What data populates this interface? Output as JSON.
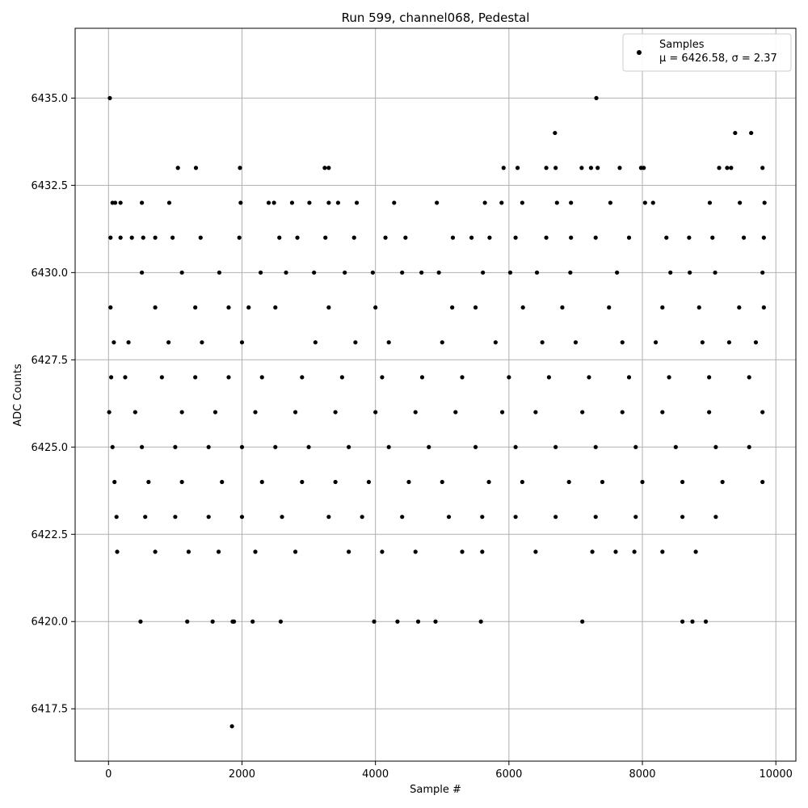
{
  "chart_data": {
    "type": "scatter",
    "title": "Run 599, channel068, Pedestal",
    "xlabel": "Sample #",
    "ylabel": "ADC Counts",
    "xlim": [
      -500,
      10300
    ],
    "ylim": [
      6416.0,
      6437.0
    ],
    "xticks": [
      0,
      2000,
      4000,
      6000,
      8000,
      10000
    ],
    "xtick_labels": [
      "0",
      "2000",
      "4000",
      "6000",
      "8000",
      "10000"
    ],
    "yticks": [
      6417.5,
      6420.0,
      6422.5,
      6425.0,
      6427.5,
      6430.0,
      6432.5,
      6435.0
    ],
    "ytick_labels": [
      "6417.5",
      "6420.0",
      "6422.5",
      "6425.0",
      "6427.5",
      "6430.0",
      "6432.5",
      "6435.0"
    ],
    "grid": true,
    "legend_position": "top-right",
    "legend": {
      "label": "Samples",
      "stats": "μ = 6426.58, σ = 2.37"
    },
    "marker_color": "#000000",
    "series": [
      {
        "name": "Samples",
        "x": [
          20,
          1850,
          7310,
          6690,
          9390,
          9630,
          1040,
          1310,
          1970,
          3240,
          3300,
          5920,
          6130,
          6560,
          6700,
          7090,
          7230,
          7330,
          7660,
          7980,
          8020,
          9150,
          9270,
          9330,
          9800,
          60,
          100,
          180,
          500,
          910,
          1980,
          2400,
          2480,
          2750,
          3010,
          3300,
          3440,
          3720,
          4280,
          4920,
          5640,
          5890,
          6200,
          6720,
          6930,
          7520,
          8040,
          8160,
          9010,
          9460,
          9830,
          30,
          180,
          350,
          520,
          700,
          960,
          1380,
          1960,
          2560,
          2830,
          3250,
          3680,
          4150,
          4450,
          5160,
          5440,
          5710,
          6100,
          6560,
          6930,
          7300,
          7800,
          8360,
          8700,
          9050,
          9520,
          9820,
          500,
          1100,
          1660,
          2280,
          2660,
          3080,
          3540,
          3960,
          4400,
          4690,
          4950,
          5610,
          6020,
          6420,
          6920,
          7620,
          8420,
          8710,
          9090,
          9800,
          30,
          700,
          1300,
          1800,
          2100,
          2500,
          3300,
          4000,
          5150,
          5500,
          6210,
          6800,
          7500,
          8300,
          8850,
          9450,
          9820,
          80,
          300,
          900,
          1400,
          2000,
          3100,
          3700,
          4200,
          5000,
          5800,
          6500,
          7000,
          7700,
          8200,
          8900,
          9300,
          9700,
          40,
          250,
          800,
          1300,
          1800,
          2300,
          2900,
          3500,
          4100,
          4700,
          5300,
          6000,
          6600,
          7200,
          7800,
          8400,
          9000,
          9600,
          10,
          400,
          1100,
          1600,
          2200,
          2800,
          3400,
          4000,
          4600,
          5200,
          5900,
          6400,
          7100,
          7700,
          8300,
          9000,
          9800,
          60,
          500,
          1000,
          1500,
          2000,
          2500,
          3000,
          3600,
          4200,
          4800,
          5500,
          6100,
          6700,
          7300,
          7900,
          8500,
          9100,
          9600,
          90,
          600,
          1100,
          1700,
          2300,
          2900,
          3400,
          3900,
          4500,
          5000,
          5700,
          6200,
          6900,
          7400,
          8000,
          8600,
          9200,
          9800,
          120,
          550,
          1000,
          1500,
          2000,
          2600,
          3300,
          3800,
          4400,
          5100,
          5600,
          6100,
          6700,
          7300,
          7900,
          8600,
          9100,
          130,
          700,
          1200,
          1650,
          2200,
          2800,
          3600,
          4100,
          4600,
          5300,
          5600,
          6400,
          7250,
          7600,
          7880,
          8300,
          8800,
          480,
          1180,
          1560,
          1880,
          2160,
          2580,
          3980,
          4330,
          4640,
          4900,
          5580,
          7100,
          8600,
          8750,
          8950,
          1860
        ],
        "y": [
          6435,
          6417,
          6435,
          6434,
          6434,
          6434,
          6433,
          6433,
          6433,
          6433,
          6433,
          6433,
          6433,
          6433,
          6433,
          6433,
          6433,
          6433,
          6433,
          6433,
          6433,
          6433,
          6433,
          6433,
          6433,
          6432,
          6432,
          6432,
          6432,
          6432,
          6432,
          6432,
          6432,
          6432,
          6432,
          6432,
          6432,
          6432,
          6432,
          6432,
          6432,
          6432,
          6432,
          6432,
          6432,
          6432,
          6432,
          6432,
          6432,
          6432,
          6432,
          6431,
          6431,
          6431,
          6431,
          6431,
          6431,
          6431,
          6431,
          6431,
          6431,
          6431,
          6431,
          6431,
          6431,
          6431,
          6431,
          6431,
          6431,
          6431,
          6431,
          6431,
          6431,
          6431,
          6431,
          6431,
          6431,
          6431,
          6430,
          6430,
          6430,
          6430,
          6430,
          6430,
          6430,
          6430,
          6430,
          6430,
          6430,
          6430,
          6430,
          6430,
          6430,
          6430,
          6430,
          6430,
          6430,
          6430,
          6429,
          6429,
          6429,
          6429,
          6429,
          6429,
          6429,
          6429,
          6429,
          6429,
          6429,
          6429,
          6429,
          6429,
          6429,
          6429,
          6429,
          6428,
          6428,
          6428,
          6428,
          6428,
          6428,
          6428,
          6428,
          6428,
          6428,
          6428,
          6428,
          6428,
          6428,
          6428,
          6428,
          6428,
          6427,
          6427,
          6427,
          6427,
          6427,
          6427,
          6427,
          6427,
          6427,
          6427,
          6427,
          6427,
          6427,
          6427,
          6427,
          6427,
          6427,
          6427,
          6426,
          6426,
          6426,
          6426,
          6426,
          6426,
          6426,
          6426,
          6426,
          6426,
          6426,
          6426,
          6426,
          6426,
          6426,
          6426,
          6426,
          6425,
          6425,
          6425,
          6425,
          6425,
          6425,
          6425,
          6425,
          6425,
          6425,
          6425,
          6425,
          6425,
          6425,
          6425,
          6425,
          6425,
          6425,
          6424,
          6424,
          6424,
          6424,
          6424,
          6424,
          6424,
          6424,
          6424,
          6424,
          6424,
          6424,
          6424,
          6424,
          6424,
          6424,
          6424,
          6424,
          6423,
          6423,
          6423,
          6423,
          6423,
          6423,
          6423,
          6423,
          6423,
          6423,
          6423,
          6423,
          6423,
          6423,
          6423,
          6423,
          6423,
          6422,
          6422,
          6422,
          6422,
          6422,
          6422,
          6422,
          6422,
          6422,
          6422,
          6422,
          6422,
          6422,
          6422,
          6422,
          6422,
          6422,
          6420,
          6420,
          6420,
          6420,
          6420,
          6420,
          6420,
          6420,
          6420,
          6420,
          6420,
          6420,
          6420,
          6420,
          6420,
          6420
        ]
      }
    ]
  }
}
